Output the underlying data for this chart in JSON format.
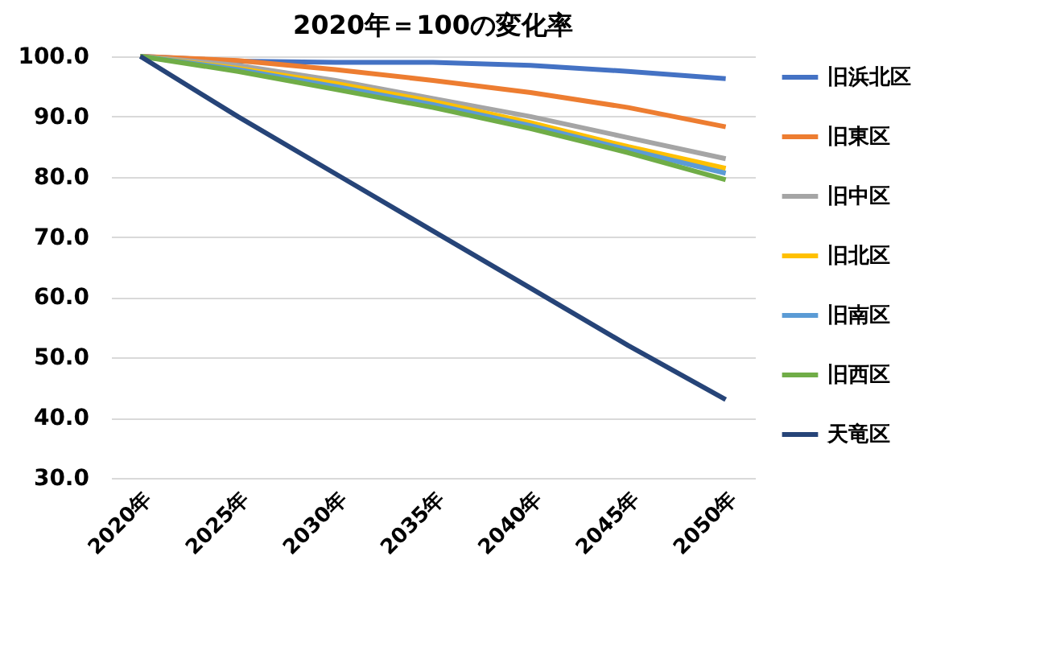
{
  "chart_data": {
    "type": "line",
    "title": "2020年＝100の変化率",
    "categories": [
      "2020年",
      "2025年",
      "2030年",
      "2035年",
      "2040年",
      "2045年",
      "2050年"
    ],
    "series": [
      {
        "name": "旧浜北区",
        "color": "#4472c4",
        "values": [
          100,
          99.2,
          99,
          99,
          98.5,
          97.5,
          96.3
        ]
      },
      {
        "name": "旧東区",
        "color": "#ed7d31",
        "values": [
          100,
          99.3,
          97.8,
          96,
          94,
          91.5,
          88.3
        ]
      },
      {
        "name": "旧中区",
        "color": "#a5a5a5",
        "values": [
          100,
          98.5,
          96,
          93,
          90,
          86.5,
          83
        ]
      },
      {
        "name": "旧北区",
        "color": "#ffc000",
        "values": [
          100,
          98,
          95.5,
          92.5,
          89,
          85,
          81.4
        ]
      },
      {
        "name": "旧南区",
        "color": "#5b9bd5",
        "values": [
          100,
          97.8,
          95,
          92,
          88.5,
          84.5,
          80.6
        ]
      },
      {
        "name": "旧西区",
        "color": "#70ad47",
        "values": [
          100,
          97.5,
          94.5,
          91.5,
          88,
          84,
          79.5
        ]
      },
      {
        "name": "天竜区",
        "color": "#264478",
        "values": [
          100,
          90,
          80.5,
          71,
          61.5,
          52,
          43
        ]
      }
    ],
    "ylim": [
      30,
      100
    ],
    "yticks": [
      {
        "value": 30,
        "label": "30.0"
      },
      {
        "value": 40,
        "label": "40.0"
      },
      {
        "value": 50,
        "label": "50.0"
      },
      {
        "value": 60,
        "label": "60.0"
      },
      {
        "value": 70,
        "label": "70.0"
      },
      {
        "value": 80,
        "label": "80.0"
      },
      {
        "value": 90,
        "label": "90.0"
      },
      {
        "value": 100,
        "label": "100.0"
      }
    ],
    "grid": "y",
    "legend": "right",
    "marker": "none",
    "line_style": "solid"
  }
}
